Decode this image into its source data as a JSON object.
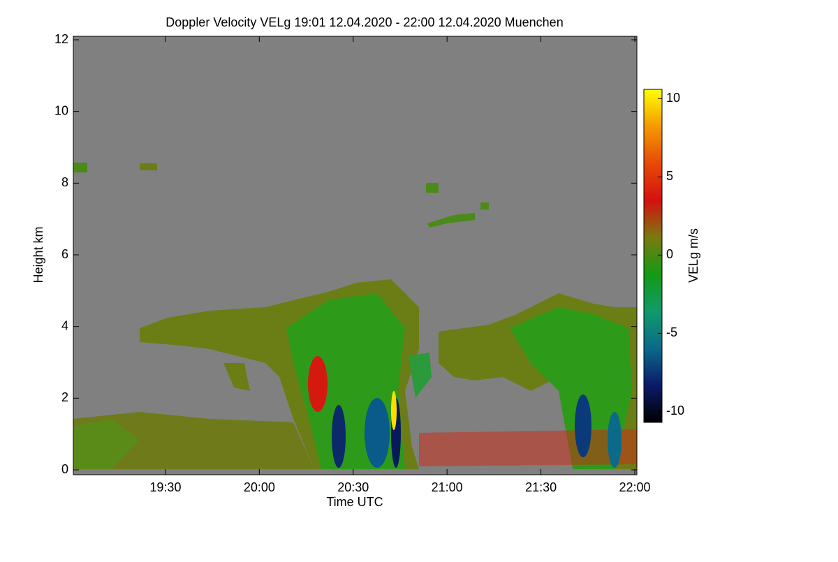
{
  "chart_data": {
    "type": "heatmap",
    "title": "Doppler Velocity VELg   19:01 12.04.2020 - 22:00 12.04.2020 Muenchen",
    "x_label": "Time UTC",
    "y_label": "Height km",
    "xlim": [
      1141,
      1320
    ],
    "xticks": [
      {
        "value": 1170,
        "label": "19:30"
      },
      {
        "value": 1200,
        "label": "20:00"
      },
      {
        "value": 1230,
        "label": "20:30"
      },
      {
        "value": 1260,
        "label": "21:00"
      },
      {
        "value": 1290,
        "label": "21:30"
      },
      {
        "value": 1320,
        "label": "22:00"
      }
    ],
    "ylim": [
      0,
      12
    ],
    "yticks": [
      0,
      2,
      4,
      6,
      8,
      10,
      12
    ],
    "colorbar": {
      "label": "VELg m/s",
      "lim": [
        -10.7,
        10.6
      ],
      "ticks": [
        -10,
        -5,
        0,
        5,
        10
      ],
      "colors": [
        "#000000",
        "#0a1a6a",
        "#0a6a8a",
        "#119a6a",
        "#149a14",
        "#7a7a10",
        "#d41010",
        "#e84a06",
        "#f49a00",
        "#ffff00"
      ]
    },
    "background_color": "#808080"
  }
}
